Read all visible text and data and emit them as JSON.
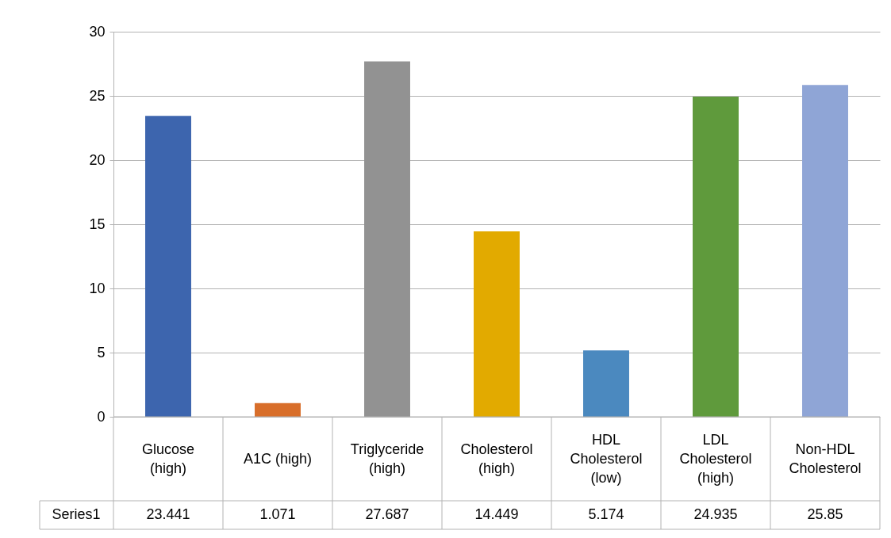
{
  "chart_data": {
    "type": "bar",
    "categories": [
      "Glucose (high)",
      "A1C (high)",
      "Triglyceride (high)",
      "Cholesterol (high)",
      "HDL Cholesterol (low)",
      "LDL Cholesterol (high)",
      "Non-HDL Cholesterol"
    ],
    "series": [
      {
        "name": "Series1",
        "colors": [
          "#3d65ae",
          "#d86e2a",
          "#929292",
          "#e2aa00",
          "#4b89bf",
          "#5f9a3c",
          "#8fa5d6"
        ],
        "values": [
          23.441,
          1.071,
          27.687,
          14.449,
          5.174,
          24.935,
          25.85
        ]
      }
    ],
    "ylim": [
      0,
      30
    ],
    "yticks": [
      0,
      5,
      10,
      15,
      20,
      25,
      30
    ],
    "grid": "y",
    "data_labels": true
  }
}
